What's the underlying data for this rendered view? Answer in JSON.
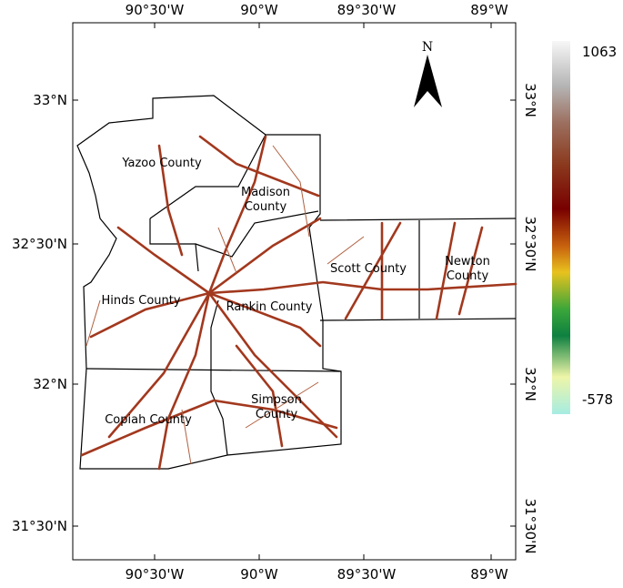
{
  "map": {
    "north_label": "N",
    "top_ticks": [
      "90°30'W",
      "90°W",
      "89°30'W",
      "89°W"
    ],
    "bottom_ticks": [
      "90°30'W",
      "90°W",
      "89°30'W",
      "89°W"
    ],
    "left_ticks": [
      "33°N",
      "32°30'N",
      "32°N",
      "31°30'N"
    ],
    "right_ticks": [
      "33°N",
      "32°30'N",
      "32°N",
      "31°30'N"
    ],
    "counties": [
      "Yazoo County",
      "Madison County",
      "Hinds County",
      "Rankin County",
      "Scott County",
      "Newton County",
      "Copiah County",
      "Simpson County"
    ],
    "colorbar": {
      "max": 1063,
      "min": -578
    }
  }
}
